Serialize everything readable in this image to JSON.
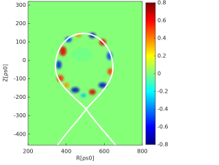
{
  "chart_data": {
    "type": "heatmap",
    "xlabel": "R[ρs0]",
    "ylabel": "Z[ρs0]",
    "xlim": [
      200,
      800
    ],
    "xticks": [
      200,
      400,
      600,
      800
    ],
    "ylim": [
      -460,
      320
    ],
    "yticks": [
      300,
      200,
      100,
      0,
      -100,
      -200,
      -300,
      -400
    ],
    "colorbar": {
      "lim": [
        -0.8,
        0.8
      ],
      "ticks": [
        0.8,
        0.6,
        0.4,
        0.2,
        0,
        -0.2,
        -0.4,
        -0.6,
        -0.8
      ]
    }
  }
}
